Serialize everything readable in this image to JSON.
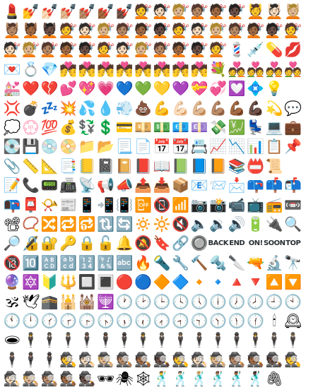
{
  "rows": [
    [
      "💄",
      "💅",
      "💅🏻",
      "💅🏼",
      "💅🏽",
      "💅🏾",
      "💅🏿",
      "💇",
      "💇🏻",
      "💇🏼",
      "💇🏽",
      "💇🏾",
      "💇🏿",
      "💆",
      "💆🏻",
      "💆🏼"
    ],
    [
      "💆🏽",
      "💆🏾",
      "💆🏿",
      "💇",
      "💇🏻",
      "💇🏼",
      "💇🏽",
      "💇🏾",
      "💇🏿",
      "💇",
      "💇🏻",
      "💇🏼",
      "💇🏽",
      "💇🏾",
      "💇🏿",
      "💇"
    ],
    [
      "💇🏻",
      "💇🏼",
      "💇🏽",
      "💇🏾",
      "💇🏿",
      "💇",
      "💇🏻",
      "💇🏼",
      "💇🏽",
      "💇🏾",
      "💇🏿",
      "💇",
      "💈",
      "💉",
      "💊",
      "💋"
    ],
    [
      "💌",
      "💍",
      "💎",
      "💏",
      "💏",
      "💏",
      "💏",
      "💏",
      "💏",
      "💏",
      "💏",
      "💐",
      "💑",
      "💑",
      "💑",
      "💑"
    ],
    [
      "💒",
      "❤️",
      "💔",
      "💕",
      "💖",
      "💗",
      "💙",
      "💚",
      "💛",
      "💜",
      "💝",
      "💞",
      "💟",
      "💠",
      "💡",
      ""
    ],
    [
      "💢",
      "💣",
      "💤",
      "💥",
      "💦",
      "💧",
      "💨",
      "💩",
      "💪",
      "💪🏻",
      "💪🏼",
      "💪🏽",
      "💪🏾",
      "💪🏿",
      "💫",
      "💬"
    ],
    [
      "💭",
      "💮",
      "💯",
      "💰",
      "💱",
      "💲",
      "💳",
      "💴",
      "💵",
      "💶",
      "💷",
      "💸",
      "💹",
      "💺",
      "💻",
      "💼"
    ],
    [
      "💽",
      "💾",
      "💿",
      "📀",
      "📁",
      "📂",
      "📃",
      "📄",
      "📅",
      "📆",
      "📇",
      "📈",
      "📉",
      "📊",
      "📋",
      "📌"
    ],
    [
      "📎",
      "📏",
      "📐",
      "📑",
      "📒",
      "📓",
      "📔",
      "📕",
      "📖",
      "📗",
      "📘",
      "📙",
      "📚",
      "📛",
      "📜",
      ""
    ],
    [
      "📝",
      "📞",
      "📟",
      "📠",
      "📡",
      "📢",
      "📣",
      "📤",
      "📥",
      "📦",
      "📧",
      "📨",
      "📩",
      "📪",
      "📫",
      "📬"
    ],
    [
      "📭",
      "📮",
      "📯",
      "📰",
      "📱",
      "📲",
      "📳",
      "📴",
      "📵",
      "📶",
      "📷",
      "📸",
      "📹",
      "📺",
      "📻",
      "📼"
    ],
    [
      "📽",
      "📿",
      "🔀",
      "🔁",
      "🔂",
      "🔃",
      "🔄",
      "🔅",
      "🔆",
      "🔇",
      "🔈",
      "🔉",
      "🔊",
      "🔋",
      "🔌",
      "🔍"
    ],
    [
      "🔎",
      "🔏",
      "🔐",
      "🔑",
      "🔒",
      "🔓",
      "🔔",
      "🔕",
      "🔖",
      "🔗",
      "🔘",
      "BACK",
      "END",
      "ON!",
      "SOON",
      "TOP"
    ],
    [
      "🔞",
      "🔟",
      "🔠",
      "🔡",
      "🔢",
      "🔣",
      "🔤",
      "🔥",
      "🔦",
      "🔧",
      "🔨",
      "🔩",
      "🔪",
      "🔫",
      "🔬",
      "🔭"
    ],
    [
      "🔮",
      "🔯",
      "🔰",
      "🔱",
      "🔲",
      "🔳",
      "🔴",
      "🔵",
      "🔶",
      "🔷",
      "🔸",
      "🔹",
      "🔺",
      "🔻",
      "🔼",
      "🔽"
    ],
    [
      "🕉",
      "🕊",
      "🕋",
      "🕌",
      "🕍",
      "🕎",
      "🕐",
      "🕑",
      "🕒",
      "🕓",
      "🕔",
      "🕕",
      "🕖",
      "🕗",
      "🕘",
      "🕙"
    ],
    [
      "🕚",
      "🕛",
      "🕜",
      "🕝",
      "🕞",
      "🕟",
      "🕠",
      "🕡",
      "🕢",
      "🕣",
      "🕤",
      "🕥",
      "🕦",
      "🕧",
      "🕯",
      "🕰"
    ],
    [
      "🕳",
      "🕴",
      "🕴🏻",
      "🕴🏼",
      "🕴🏽",
      "🕴🏾",
      "🕴🏿",
      "🕴",
      "🕴🏻",
      "🕴🏼",
      "🕴🏽",
      "🕴🏾",
      "🕴🏿",
      "🕴",
      "🕴🏻",
      "🕴🏼"
    ],
    [
      "🕴🏽",
      "🕴🏾",
      "🕴🏿",
      "🕵",
      "🕵🏻",
      "🕵🏼",
      "🕵🏽",
      "🕵🏾",
      "🕵🏿",
      "🕵",
      "🕵🏻",
      "🕵🏼",
      "🕵🏽",
      "🕵🏾",
      "🕵🏿",
      "🕵"
    ],
    [
      "🕵🏻",
      "🕵🏼",
      "🕵🏽",
      "🕵🏾",
      "🕵🏿",
      "🕶",
      "🕷",
      "🕸",
      "🕺",
      "🕺🏻",
      "🕺🏼",
      "🕺🏽",
      "🕺🏾",
      "🕺🏿",
      "🖇",
      ""
    ]
  ]
}
